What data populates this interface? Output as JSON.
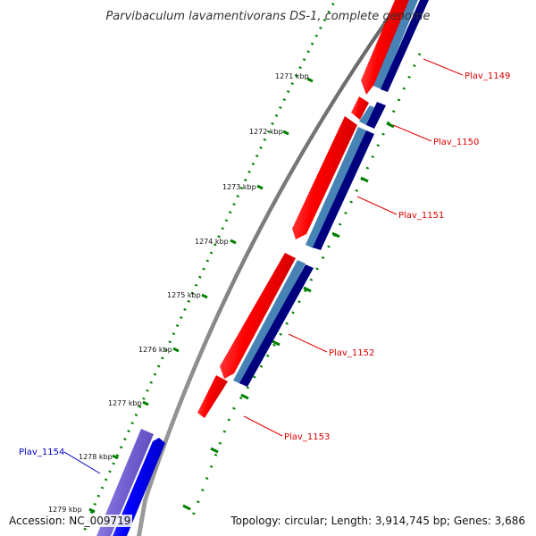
{
  "title": "Parvibaculum lavamentivorans DS-1, complete genome",
  "ticks": [
    "1271 kbp",
    "1272 kbp",
    "1273 kbp",
    "1274 kbp",
    "1275 kbp",
    "1276 kbp",
    "1277 kbp",
    "1278 kbp",
    "1279 kbp"
  ],
  "genes": {
    "plav_1149": "Plav_1149",
    "plav_1150": "Plav_1150",
    "plav_1151": "Plav_1151",
    "plav_1152": "Plav_1152",
    "plav_1153": "Plav_1153",
    "plav_1154": "Plav_1154"
  },
  "footer": {
    "accession": "Accession: NC_009719",
    "summary": "Topology: circular; Length: 3,914,745 bp; Genes: 3,686"
  },
  "colors": {
    "forward_cds": "#ff0000",
    "reverse_cds": "#0000ff",
    "blast_purple": "#7b68d8",
    "light_blue": "#4682b4",
    "dark_blue": "#00007f",
    "backbone": "#808080",
    "ticks": "#008000"
  }
}
